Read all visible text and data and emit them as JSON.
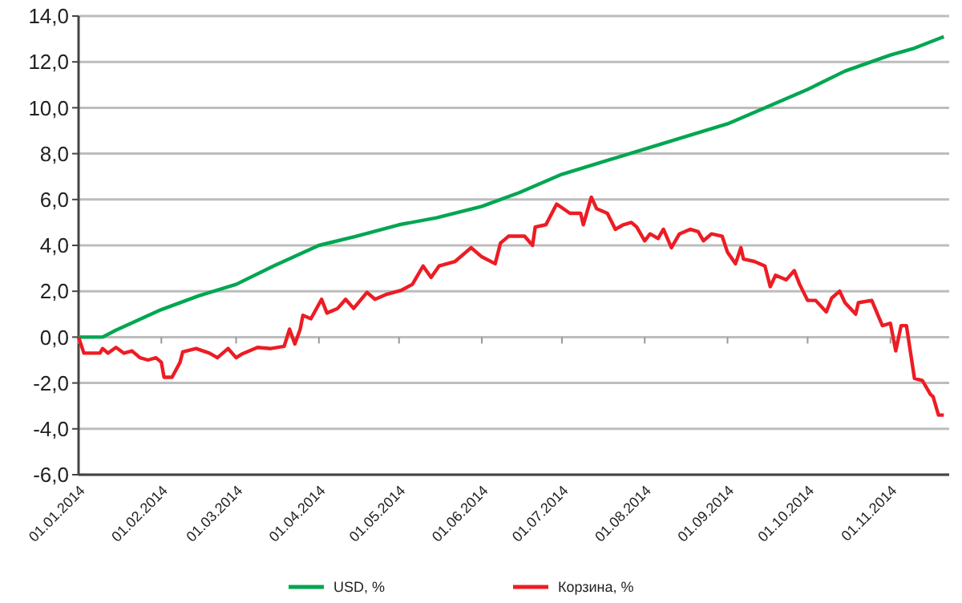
{
  "chart_data": {
    "type": "line",
    "legend": "bottom",
    "grid": "y",
    "line_style": "solid",
    "marker": "none",
    "xlim": [
      "2014-01-01",
      "2014-11-23"
    ],
    "xticks": [
      {
        "value": "2014-01-01",
        "label": "01.01.2014"
      },
      {
        "value": "2014-02-01",
        "label": "01.02.2014"
      },
      {
        "value": "2014-03-01",
        "label": "01.03.2014"
      },
      {
        "value": "2014-04-01",
        "label": "01.04.2014"
      },
      {
        "value": "2014-05-01",
        "label": "01.05.2014"
      },
      {
        "value": "2014-06-01",
        "label": "01.06.2014"
      },
      {
        "value": "2014-07-01",
        "label": "01.07.2014"
      },
      {
        "value": "2014-08-01",
        "label": "01.08.2014"
      },
      {
        "value": "2014-09-01",
        "label": "01.09.2014"
      },
      {
        "value": "2014-10-01",
        "label": "01.10.2014"
      },
      {
        "value": "2014-11-01",
        "label": "01.11.2014"
      }
    ],
    "ylim": [
      -6,
      14
    ],
    "yticks": [
      {
        "value": -6,
        "label": "-6,0"
      },
      {
        "value": -4,
        "label": "-4,0"
      },
      {
        "value": -2,
        "label": "-2,0"
      },
      {
        "value": 0,
        "label": "0,0"
      },
      {
        "value": 2,
        "label": "2,0"
      },
      {
        "value": 4,
        "label": "4,0"
      },
      {
        "value": 6,
        "label": "6,0"
      },
      {
        "value": 8,
        "label": "8,0"
      },
      {
        "value": 10,
        "label": "10,0"
      },
      {
        "value": 12,
        "label": "12,0"
      },
      {
        "value": 14,
        "label": "14,0"
      }
    ],
    "series": [
      {
        "name": "USD, %",
        "color": "#00a651",
        "x": [
          "2014-01-01",
          "2014-01-10",
          "2014-01-15",
          "2014-02-01",
          "2014-02-15",
          "2014-03-01",
          "2014-03-15",
          "2014-04-01",
          "2014-04-15",
          "2014-05-01",
          "2014-05-15",
          "2014-06-01",
          "2014-06-15",
          "2014-07-01",
          "2014-07-15",
          "2014-08-01",
          "2014-08-15",
          "2014-09-01",
          "2014-09-15",
          "2014-10-01",
          "2014-10-15",
          "2014-11-01",
          "2014-11-10",
          "2014-11-21"
        ],
        "values": [
          0,
          0,
          0.3,
          1.2,
          1.8,
          2.3,
          3.1,
          4.0,
          4.4,
          4.9,
          5.2,
          5.7,
          6.3,
          7.1,
          7.6,
          8.2,
          8.7,
          9.3,
          10.0,
          10.8,
          11.6,
          12.3,
          12.6,
          13.1
        ]
      },
      {
        "name": "Корзина, %",
        "color": "#ed1c24",
        "x": [
          "2014-01-01",
          "2014-01-03",
          "2014-01-09",
          "2014-01-10",
          "2014-01-12",
          "2014-01-15",
          "2014-01-18",
          "2014-01-21",
          "2014-01-24",
          "2014-01-27",
          "2014-01-30",
          "2014-02-01",
          "2014-02-02",
          "2014-02-05",
          "2014-02-08",
          "2014-02-09",
          "2014-02-14",
          "2014-02-19",
          "2014-02-22",
          "2014-02-26",
          "2014-03-01",
          "2014-03-03",
          "2014-03-06",
          "2014-03-09",
          "2014-03-14",
          "2014-03-19",
          "2014-03-21",
          "2014-03-23",
          "2014-03-25",
          "2014-03-26",
          "2014-03-29",
          "2014-04-02",
          "2014-04-04",
          "2014-04-08",
          "2014-04-11",
          "2014-04-14",
          "2014-04-19",
          "2014-04-22",
          "2014-04-26",
          "2014-05-02",
          "2014-05-06",
          "2014-05-10",
          "2014-05-13",
          "2014-05-16",
          "2014-05-22",
          "2014-05-28",
          "2014-06-01",
          "2014-06-06",
          "2014-06-08",
          "2014-06-11",
          "2014-06-17",
          "2014-06-20",
          "2014-06-21",
          "2014-06-25",
          "2014-06-29",
          "2014-07-04",
          "2014-07-08",
          "2014-07-09",
          "2014-07-12",
          "2014-07-14",
          "2014-07-18",
          "2014-07-21",
          "2014-07-24",
          "2014-07-27",
          "2014-07-29",
          "2014-08-01",
          "2014-08-03",
          "2014-08-06",
          "2014-08-08",
          "2014-08-11",
          "2014-08-14",
          "2014-08-18",
          "2014-08-21",
          "2014-08-23",
          "2014-08-26",
          "2014-08-30",
          "2014-09-01",
          "2014-09-04",
          "2014-09-06",
          "2014-09-07",
          "2014-09-11",
          "2014-09-15",
          "2014-09-17",
          "2014-09-19",
          "2014-09-23",
          "2014-09-26",
          "2014-09-28",
          "2014-10-01",
          "2014-10-04",
          "2014-10-08",
          "2014-10-10",
          "2014-10-13",
          "2014-10-15",
          "2014-10-19",
          "2014-10-20",
          "2014-10-25",
          "2014-10-29",
          "2014-11-01",
          "2014-11-03",
          "2014-11-05",
          "2014-11-07",
          "2014-11-10",
          "2014-11-13",
          "2014-11-16",
          "2014-11-17",
          "2014-11-19",
          "2014-11-21"
        ],
        "values": [
          0,
          -0.7,
          -0.7,
          -0.5,
          -0.7,
          -0.45,
          -0.7,
          -0.6,
          -0.9,
          -1.0,
          -0.9,
          -1.1,
          -1.75,
          -1.75,
          -1.1,
          -0.65,
          -0.5,
          -0.7,
          -0.9,
          -0.5,
          -0.9,
          -0.75,
          -0.6,
          -0.45,
          -0.5,
          -0.4,
          0.35,
          -0.3,
          0.35,
          0.95,
          0.8,
          1.65,
          1.05,
          1.25,
          1.65,
          1.25,
          1.95,
          1.65,
          1.85,
          2.05,
          2.3,
          3.1,
          2.6,
          3.1,
          3.3,
          3.9,
          3.5,
          3.2,
          4.1,
          4.4,
          4.4,
          4.0,
          4.8,
          4.9,
          5.8,
          5.4,
          5.4,
          4.9,
          6.1,
          5.6,
          5.4,
          4.7,
          4.9,
          5.0,
          4.8,
          4.2,
          4.5,
          4.3,
          4.7,
          3.9,
          4.5,
          4.7,
          4.6,
          4.2,
          4.5,
          4.4,
          3.7,
          3.2,
          3.9,
          3.4,
          3.3,
          3.1,
          2.2,
          2.7,
          2.5,
          2.9,
          2.3,
          1.6,
          1.6,
          1.1,
          1.7,
          2.0,
          1.5,
          1.0,
          1.5,
          1.6,
          0.5,
          0.6,
          -0.6,
          0.5,
          0.5,
          -1.8,
          -1.9,
          -2.5,
          -2.6,
          -3.4,
          -3.4
        ]
      }
    ]
  }
}
